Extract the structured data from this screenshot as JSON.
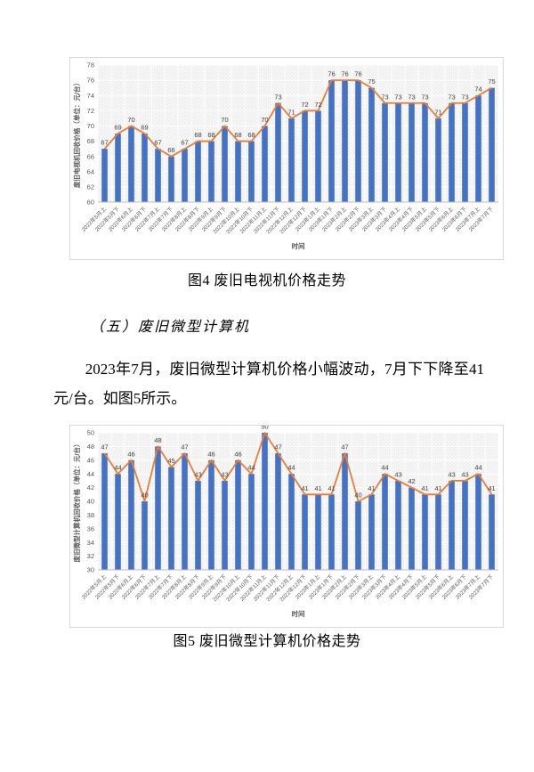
{
  "page": {
    "caption_fig4": "图4 废旧电视机价格走势",
    "section_heading": "（五）废旧微型计算机",
    "paragraph": "2023年7月，废旧微型计算机价格小幅波动，7月下下降至41元/台。如图5所示。",
    "caption_fig5": "图5 废旧微型计算机价格走势"
  },
  "colors": {
    "bar": "#4472C4",
    "line": "#ED7D31",
    "plot_bg_light": "#F6F6F6",
    "plot_bg_dot": "#E9E9E9",
    "grid": "#FFFFFF",
    "axis_line": "#BFBFBF",
    "chart_border": "#D9D9D9",
    "tick_text": "#595959",
    "data_label": "#404040"
  },
  "chart_data": [
    {
      "type": "bar",
      "subtype": "bar+line combo",
      "title": "",
      "ylabel": "废旧电视机回收价格（单位：元/台）",
      "xlabel": "时间",
      "ylim": [
        60,
        78
      ],
      "ytick_step": 2,
      "grid": true,
      "legend_position": "none",
      "categories": [
        "2022年5月上",
        "2022年5月下",
        "2022年6月上",
        "2022年6月下",
        "2022年7月上",
        "2022年7月下",
        "2022年8月上",
        "2022年8月下",
        "2022年9月上",
        "2022年9月下",
        "2022年10月上",
        "2022年10月下",
        "2022年11月上",
        "2022年11月下",
        "2022年12月上",
        "2022年12月下",
        "2023年1月上",
        "2023年1月下",
        "2023年2月上",
        "2023年2月下",
        "2023年3月上",
        "2023年3月下",
        "2023年4月上",
        "2023年4月下",
        "2023年5月上",
        "2023年5月下",
        "2023年6月上",
        "2023年6月下",
        "2023年7月上",
        "2023年7月下"
      ],
      "values": [
        67,
        69,
        70,
        69,
        67,
        66,
        67,
        68,
        68,
        70,
        68,
        68,
        70,
        73,
        71,
        72,
        72,
        76,
        76,
        76,
        75,
        73,
        73,
        73,
        73,
        71,
        73,
        73,
        74,
        75
      ]
    },
    {
      "type": "bar",
      "subtype": "bar+line combo",
      "title": "",
      "ylabel": "废旧微型计算机回收价格（单位：元/台）",
      "xlabel": "时间",
      "ylim": [
        30,
        50
      ],
      "ytick_step": 2,
      "grid": true,
      "legend_position": "none",
      "categories": [
        "2022年5月上",
        "2022年5月下",
        "2022年6月上",
        "2022年6月下",
        "2022年7月上",
        "2022年7月下",
        "2022年8月上",
        "2022年8月下",
        "2022年9月上",
        "2022年9月下",
        "2022年10月上",
        "2022年10月下",
        "2022年11月上",
        "2022年11月下",
        "2022年12月上",
        "2022年12月下",
        "2023年1月上",
        "2023年1月下",
        "2023年2月上",
        "2023年2月下",
        "2023年3月上",
        "2023年3月下",
        "2023年4月上",
        "2023年4月下",
        "2023年5月上",
        "2023年5月下",
        "2023年6月上",
        "2023年6月下",
        "2023年7月上",
        "2023年7月下"
      ],
      "values": [
        47,
        44,
        46,
        40,
        48,
        45,
        47,
        43,
        46,
        43,
        46,
        44,
        50,
        47,
        44,
        41,
        41,
        41,
        47,
        40,
        41,
        44,
        43,
        42,
        41,
        41,
        43,
        43,
        44,
        41
      ]
    }
  ]
}
